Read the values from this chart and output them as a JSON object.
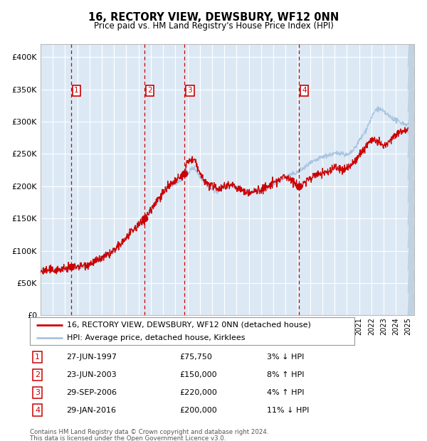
{
  "title": "16, RECTORY VIEW, DEWSBURY, WF12 0NN",
  "subtitle": "Price paid vs. HM Land Registry's House Price Index (HPI)",
  "legend_line1": "16, RECTORY VIEW, DEWSBURY, WF12 0NN (detached house)",
  "legend_line2": "HPI: Average price, detached house, Kirklees",
  "footer_line1": "Contains HM Land Registry data © Crown copyright and database right 2024.",
  "footer_line2": "This data is licensed under the Open Government Licence v3.0.",
  "transactions": [
    {
      "num": 1,
      "date": "27-JUN-1997",
      "year": 1997.49,
      "price": 75750,
      "pct": "3%",
      "dir": "↓"
    },
    {
      "num": 2,
      "date": "23-JUN-2003",
      "year": 2003.48,
      "price": 150000,
      "pct": "8%",
      "dir": "↑"
    },
    {
      "num": 3,
      "date": "29-SEP-2006",
      "year": 2006.75,
      "price": 220000,
      "pct": "4%",
      "dir": "↑"
    },
    {
      "num": 4,
      "date": "29-JAN-2016",
      "year": 2016.08,
      "price": 200000,
      "pct": "11%",
      "dir": "↓"
    }
  ],
  "ylim": [
    0,
    420000
  ],
  "xlim_start": 1995.0,
  "xlim_end": 2025.5,
  "background_color": "#dce9f5",
  "hpi_color": "#a8c4e0",
  "price_color": "#cc0000",
  "marker_color": "#cc0000",
  "vline_color": "#cc0000",
  "grid_color": "#ffffff",
  "hpi_anchors_x": [
    1995.0,
    1996.0,
    1997.0,
    1997.5,
    1998.0,
    1999.0,
    2000.0,
    2001.0,
    2002.0,
    2003.0,
    2003.5,
    2004.5,
    2005.5,
    2006.5,
    2007.0,
    2007.5,
    2008.0,
    2008.5,
    2009.0,
    2009.5,
    2010.0,
    2010.5,
    2011.0,
    2011.5,
    2012.0,
    2012.5,
    2013.0,
    2013.5,
    2014.0,
    2014.5,
    2015.0,
    2015.5,
    2016.0,
    2016.5,
    2017.0,
    2017.5,
    2018.0,
    2018.5,
    2019.0,
    2019.5,
    2020.0,
    2020.5,
    2021.0,
    2021.5,
    2022.0,
    2022.5,
    2023.0,
    2023.5,
    2024.0,
    2024.5,
    2025.0
  ],
  "hpi_anchors_y": [
    70000,
    71000,
    72000,
    73000,
    74000,
    78000,
    88000,
    100000,
    120000,
    140000,
    148000,
    175000,
    200000,
    210000,
    220000,
    228000,
    215000,
    205000,
    195000,
    192000,
    198000,
    202000,
    198000,
    193000,
    190000,
    192000,
    195000,
    198000,
    202000,
    208000,
    215000,
    218000,
    222000,
    228000,
    235000,
    240000,
    245000,
    248000,
    250000,
    252000,
    248000,
    255000,
    270000,
    285000,
    305000,
    320000,
    315000,
    308000,
    302000,
    298000,
    295000
  ],
  "price_anchors_x": [
    1995.0,
    1996.0,
    1997.0,
    1997.5,
    1998.0,
    1999.0,
    2000.0,
    2001.0,
    2002.0,
    2003.0,
    2003.5,
    2004.5,
    2005.5,
    2006.5,
    2006.75,
    2007.0,
    2007.5,
    2008.0,
    2008.5,
    2009.0,
    2009.5,
    2010.0,
    2010.5,
    2011.0,
    2011.5,
    2012.0,
    2012.5,
    2013.0,
    2013.5,
    2014.0,
    2014.5,
    2015.0,
    2015.5,
    2016.0,
    2016.08,
    2016.5,
    2017.0,
    2017.5,
    2018.0,
    2018.5,
    2019.0,
    2019.5,
    2020.0,
    2020.5,
    2021.0,
    2021.5,
    2022.0,
    2022.5,
    2023.0,
    2023.5,
    2024.0,
    2024.5,
    2025.0
  ],
  "price_anchors_y": [
    68000,
    70000,
    72000,
    75750,
    76000,
    80000,
    88000,
    100000,
    120000,
    140000,
    150000,
    178000,
    200000,
    215000,
    220000,
    238000,
    240000,
    220000,
    205000,
    200000,
    197000,
    200000,
    203000,
    198000,
    193000,
    190000,
    192000,
    195000,
    198000,
    205000,
    210000,
    215000,
    210000,
    200000,
    200000,
    205000,
    212000,
    218000,
    220000,
    222000,
    230000,
    225000,
    228000,
    235000,
    248000,
    260000,
    272000,
    268000,
    262000,
    270000,
    280000,
    285000,
    290000
  ]
}
